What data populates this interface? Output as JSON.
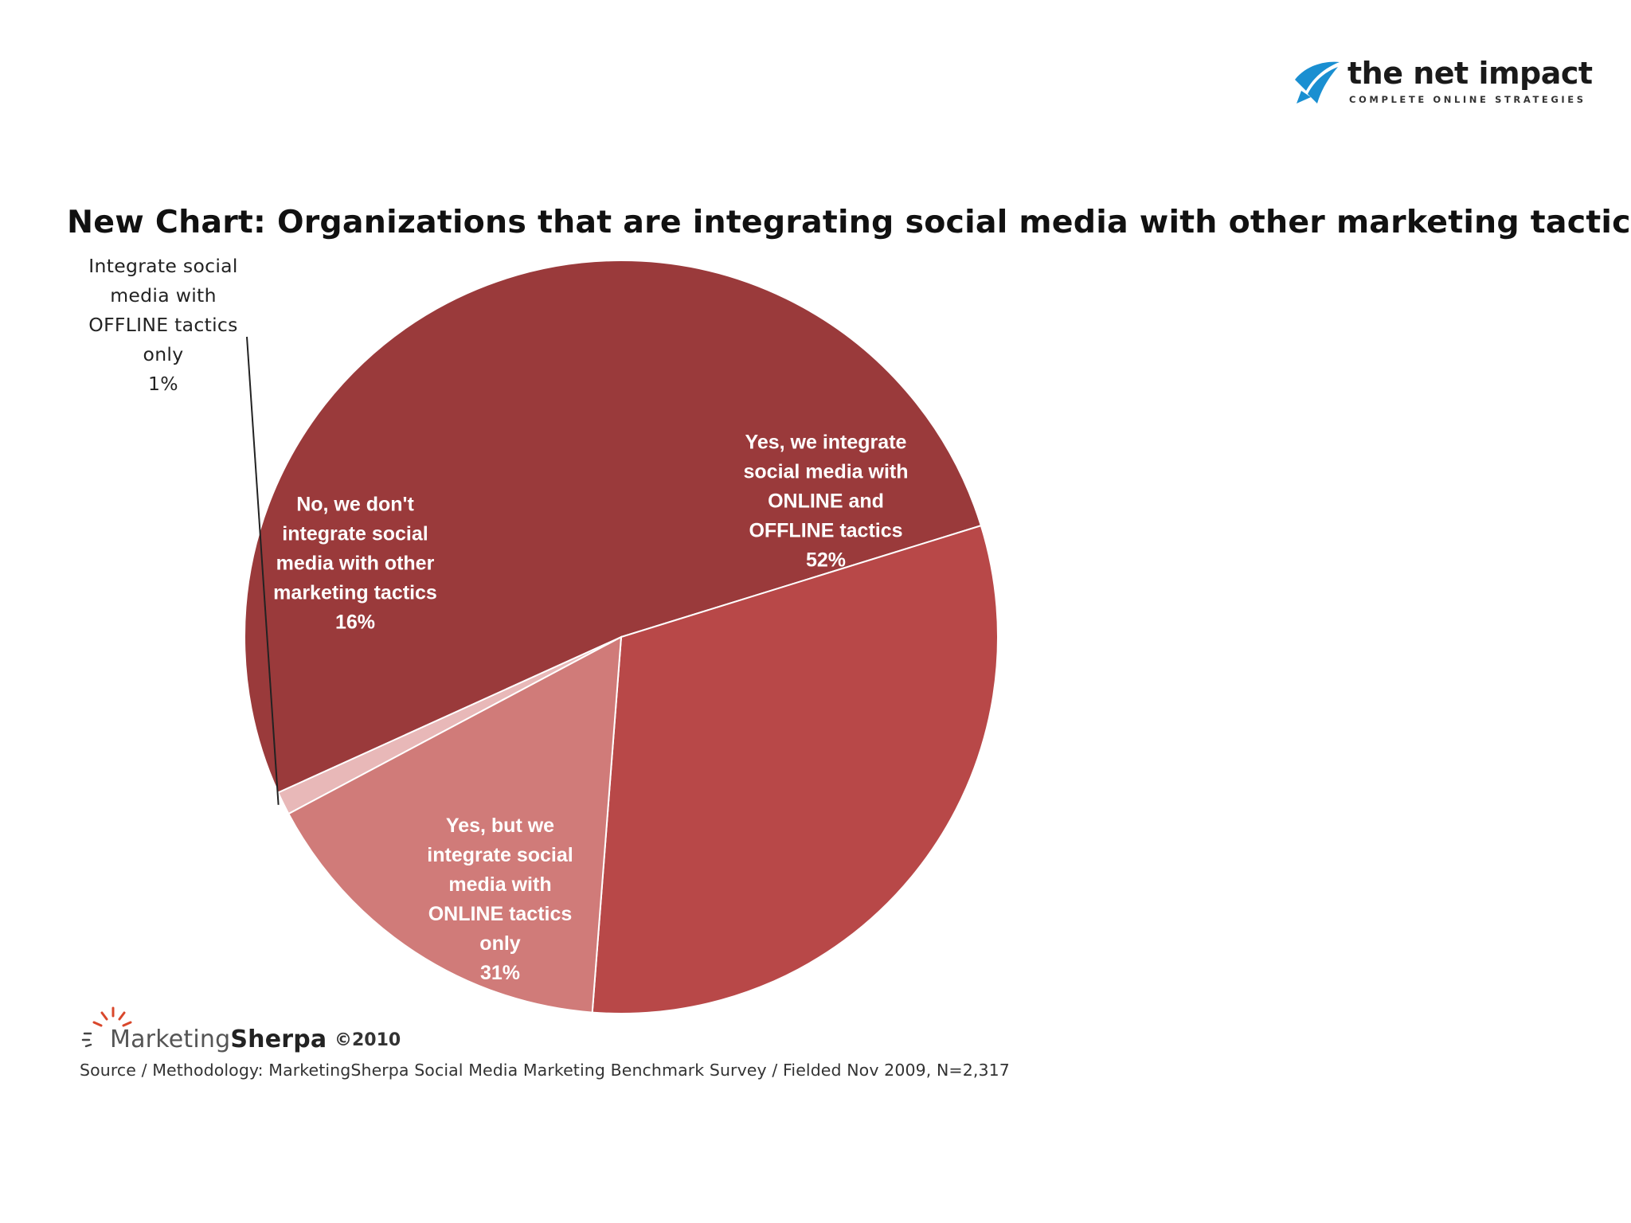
{
  "brand": {
    "name": "the net impact",
    "tagline": "COMPLETE ONLINE STRATEGIES",
    "color": "#1a8fd1"
  },
  "chart_data": {
    "type": "pie",
    "title": "New Chart: Organizations that are integrating social media with other marketing tactics",
    "slices": [
      {
        "lines": [
          "Yes, we integrate",
          "social media with",
          "ONLINE and",
          "OFFLINE tactics"
        ],
        "value": 52,
        "value_label": "52%",
        "color": "#9a3a3b",
        "label_position": "inside"
      },
      {
        "lines": [
          "Yes, but we",
          "integrate social",
          "media with",
          "ONLINE tactics",
          "only"
        ],
        "value": 31,
        "value_label": "31%",
        "color": "#b84848",
        "label_position": "inside"
      },
      {
        "lines": [
          "No, we don't",
          "integrate social",
          "media with other",
          "marketing tactics"
        ],
        "value": 16,
        "value_label": "16%",
        "color": "#d07b79",
        "label_position": "inside"
      },
      {
        "lines": [
          "Integrate social",
          "media with",
          "OFFLINE tactics",
          "only"
        ],
        "value": 1,
        "value_label": "1%",
        "color": "#e8b8b8",
        "label_position": "outside"
      }
    ]
  },
  "footer": {
    "publisher": "Marketing",
    "publisher_bold": "Sherpa",
    "copyright": "©2010",
    "source": "Source / Methodology: MarketingSherpa Social Media Marketing Benchmark Survey / Fielded Nov 2009, N=2,317"
  }
}
